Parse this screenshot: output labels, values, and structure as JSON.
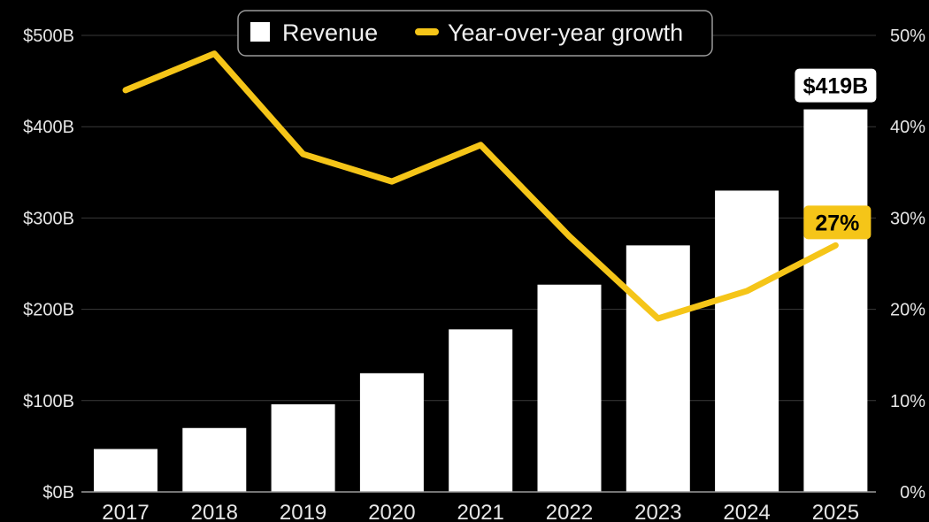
{
  "chart_data": {
    "type": "bar",
    "categories": [
      "2017",
      "2018",
      "2019",
      "2020",
      "2021",
      "2022",
      "2023",
      "2024",
      "2025"
    ],
    "series": [
      {
        "name": "Revenue",
        "type": "bar",
        "axis": "left",
        "values": [
          47,
          70,
          96,
          130,
          178,
          227,
          270,
          330,
          419
        ]
      },
      {
        "name": "Year-over-year growth",
        "type": "line",
        "axis": "right",
        "values": [
          44,
          48,
          37,
          34,
          38,
          28,
          19,
          22,
          27
        ]
      }
    ],
    "y_left": {
      "ticks": [
        "$0B",
        "$100B",
        "$200B",
        "$300B",
        "$400B",
        "$500B"
      ],
      "ylim": [
        0,
        500
      ]
    },
    "y_right": {
      "ticks": [
        "0%",
        "10%",
        "20%",
        "30%",
        "40%",
        "50%"
      ],
      "ylim": [
        0,
        50
      ]
    },
    "annotations": {
      "bar_last": "$419B",
      "line_last": "27%"
    },
    "legend_position": "top-center",
    "grid": true,
    "colors": {
      "bar": "#ffffff",
      "line": "#f5c518",
      "background": "#000000"
    }
  }
}
